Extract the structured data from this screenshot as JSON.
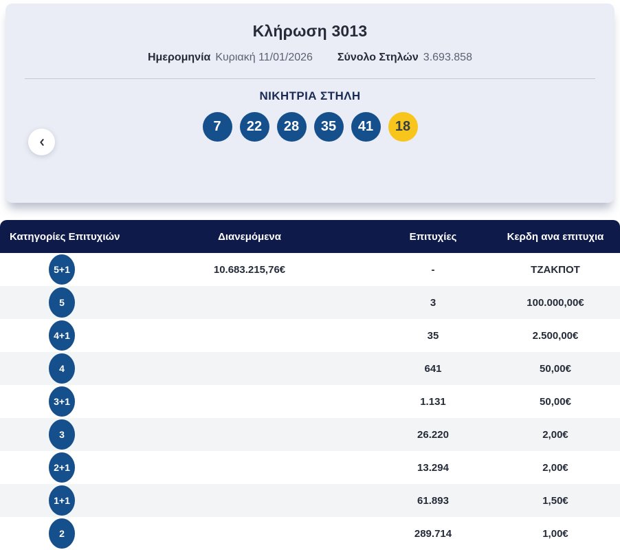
{
  "colors": {
    "accent-blue": "#15508d",
    "bonus-yellow": "#f8c51d",
    "header-navy": "#0e1b4a",
    "card-bg": "#eaedf5",
    "row-alt": "#f3f4f6",
    "text-dark": "#252b38",
    "text-navy": "#1c2b56",
    "text-gray": "#5a6170"
  },
  "hero": {
    "title": "Κλήρωση 3013",
    "date_label": "Ημερομηνία",
    "date_value": "Κυριακή 11/01/2026",
    "total_columns_label": "Σύνολο Στηλών",
    "total_columns_value": "3.693.858",
    "winning_column_title": "ΝΙΚΗΤΡΙΑ ΣΤΗΛΗ",
    "prev_button_icon": "chevron-left-icon",
    "winning_numbers": [
      {
        "value": "7",
        "type": "main"
      },
      {
        "value": "22",
        "type": "main"
      },
      {
        "value": "28",
        "type": "main"
      },
      {
        "value": "35",
        "type": "main"
      },
      {
        "value": "41",
        "type": "main"
      },
      {
        "value": "18",
        "type": "bonus"
      }
    ]
  },
  "results_table": {
    "headers": [
      "Κατηγορίες Επιτυχιών",
      "Διανεμόμενα",
      "Επιτυχίες",
      "Κερδη ανα επιτυχια"
    ],
    "rows": [
      {
        "category": "5+1",
        "distributed": "10.683.215,76€",
        "wins": "-",
        "prize": "ΤΖΑΚΠΟΤ"
      },
      {
        "category": "5",
        "distributed": "",
        "wins": "3",
        "prize": "100.000,00€"
      },
      {
        "category": "4+1",
        "distributed": "",
        "wins": "35",
        "prize": "2.500,00€"
      },
      {
        "category": "4",
        "distributed": "",
        "wins": "641",
        "prize": "50,00€"
      },
      {
        "category": "3+1",
        "distributed": "",
        "wins": "1.131",
        "prize": "50,00€"
      },
      {
        "category": "3",
        "distributed": "",
        "wins": "26.220",
        "prize": "2,00€"
      },
      {
        "category": "2+1",
        "distributed": "",
        "wins": "13.294",
        "prize": "2,00€"
      },
      {
        "category": "1+1",
        "distributed": "",
        "wins": "61.893",
        "prize": "1,50€"
      },
      {
        "category": "2",
        "distributed": "",
        "wins": "289.714",
        "prize": "1,00€"
      }
    ]
  }
}
